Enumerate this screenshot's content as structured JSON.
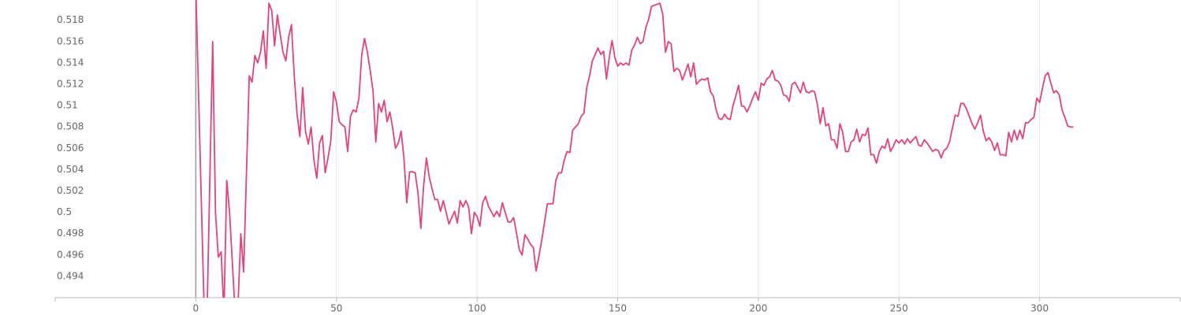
{
  "chart_data": {
    "type": "line",
    "xlim": [
      -50,
      350
    ],
    "ylim": [
      0.492,
      0.5199
    ],
    "xticks": [
      0,
      50,
      100,
      150,
      200,
      250,
      300
    ],
    "yticks": [
      0.494,
      0.496,
      0.498,
      0.5,
      0.502,
      0.504,
      0.506,
      0.508,
      0.51,
      0.512,
      0.514,
      0.516,
      0.518
    ],
    "grid": true,
    "series": [
      {
        "color": "#e8407a",
        "x": [
          0,
          3,
          4,
          6,
          7,
          8,
          9,
          10,
          11,
          12,
          14,
          15,
          16,
          17,
          19,
          20,
          21,
          22,
          23,
          24,
          25,
          26,
          27,
          28,
          29,
          30,
          31,
          32,
          33,
          34,
          35,
          36,
          37,
          38,
          39,
          40,
          41,
          42,
          43,
          44,
          45,
          46,
          47,
          48,
          49,
          50,
          51,
          52,
          53,
          54,
          55,
          56,
          57,
          58,
          59,
          60,
          61,
          62,
          63,
          64,
          65,
          66,
          67,
          68,
          69,
          70,
          71,
          72,
          73,
          74,
          75,
          76,
          77,
          78,
          79,
          80,
          81,
          82,
          83,
          84,
          85,
          86,
          87,
          88,
          89,
          90,
          91,
          92,
          93,
          94,
          95,
          96,
          97,
          98,
          99,
          100,
          101,
          102,
          103,
          104,
          105,
          106,
          107,
          108,
          109,
          110,
          111,
          112,
          113,
          114,
          115,
          116,
          117,
          118,
          119,
          120,
          121,
          122,
          123,
          124,
          125,
          126,
          127,
          128,
          129,
          130,
          131,
          132,
          133,
          134,
          135,
          136,
          137,
          138,
          139,
          140,
          141,
          142,
          143,
          144,
          145,
          146,
          147,
          148,
          149,
          150,
          151,
          152,
          153,
          154,
          155,
          156,
          157,
          158,
          159,
          160,
          161,
          162,
          163,
          164,
          165,
          166,
          167,
          168,
          169,
          170,
          171,
          172,
          173,
          174,
          175,
          176,
          177,
          178,
          179,
          180,
          181,
          182,
          183,
          184,
          185,
          186,
          187,
          188,
          189,
          190,
          191,
          192,
          193,
          194,
          195,
          196,
          197,
          198,
          199,
          200,
          201,
          202,
          203,
          204,
          205,
          206,
          207,
          208,
          209,
          210,
          211,
          212,
          213,
          214,
          215,
          216,
          217,
          218,
          219,
          220,
          221,
          222,
          223,
          224,
          225,
          226,
          227,
          228,
          229,
          230,
          231,
          232,
          233,
          234,
          235,
          236,
          237,
          238,
          239,
          240,
          241,
          242,
          243,
          244,
          245,
          246,
          247,
          248,
          249,
          250,
          251,
          252,
          253,
          254,
          255,
          256,
          257,
          258,
          259,
          260,
          261,
          262,
          263,
          264,
          265,
          266,
          267,
          268,
          269,
          270,
          271,
          272,
          273,
          274,
          275,
          276,
          277,
          278,
          279,
          280,
          281,
          282,
          283,
          284,
          285,
          286,
          287,
          288,
          289,
          290,
          291,
          292,
          293,
          294,
          295,
          296,
          297,
          298,
          299,
          300,
          301,
          302,
          303,
          304,
          305,
          306,
          307,
          308,
          309,
          310,
          311,
          312
        ],
        "values": [
          0.521,
          0.4905,
          0.4905,
          0.516,
          0.5,
          0.4958,
          0.4963,
          0.4905,
          0.503,
          0.5,
          0.4905,
          0.4913,
          0.498,
          0.4944,
          0.5128,
          0.5122,
          0.5147,
          0.514,
          0.515,
          0.517,
          0.5135,
          0.5196,
          0.5189,
          0.5156,
          0.5185,
          0.5167,
          0.515,
          0.5142,
          0.5164,
          0.5176,
          0.5128,
          0.5092,
          0.5071,
          0.5117,
          0.5076,
          0.5064,
          0.508,
          0.5049,
          0.5032,
          0.5065,
          0.5072,
          0.5037,
          0.5051,
          0.5067,
          0.5113,
          0.5103,
          0.5085,
          0.5082,
          0.508,
          0.5057,
          0.509,
          0.5096,
          0.5094,
          0.5107,
          0.5148,
          0.5163,
          0.515,
          0.5133,
          0.5114,
          0.5066,
          0.5102,
          0.5094,
          0.5105,
          0.5085,
          0.5094,
          0.5079,
          0.506,
          0.5065,
          0.5076,
          0.5051,
          0.5009,
          0.5038,
          0.5038,
          0.5037,
          0.5018,
          0.4985,
          0.5025,
          0.5051,
          0.5033,
          0.5022,
          0.5012,
          0.5012,
          0.5001,
          0.5011,
          0.5,
          0.4989,
          0.4995,
          0.5001,
          0.499,
          0.5011,
          0.5005,
          0.5011,
          0.5005,
          0.498,
          0.5,
          0.4996,
          0.4987,
          0.5009,
          0.5015,
          0.5006,
          0.5001,
          0.4996,
          0.5001,
          0.4996,
          0.5009,
          0.5,
          0.4991,
          0.4991,
          0.4995,
          0.4981,
          0.4965,
          0.496,
          0.4979,
          0.4975,
          0.497,
          0.4967,
          0.4945,
          0.4959,
          0.4974,
          0.4991,
          0.5008,
          0.5008,
          0.5008,
          0.503,
          0.5037,
          0.5037,
          0.5049,
          0.5057,
          0.5056,
          0.5077,
          0.508,
          0.5083,
          0.509,
          0.5093,
          0.5117,
          0.5128,
          0.5142,
          0.5148,
          0.5154,
          0.5148,
          0.5151,
          0.5125,
          0.5145,
          0.5161,
          0.5145,
          0.5137,
          0.514,
          0.5138,
          0.514,
          0.5138,
          0.5152,
          0.5157,
          0.5164,
          0.5158,
          0.516,
          0.5173,
          0.5181,
          0.5193,
          0.5194,
          0.5195,
          0.5196,
          0.5186,
          0.515,
          0.516,
          0.5158,
          0.5132,
          0.5135,
          0.5133,
          0.5124,
          0.5131,
          0.5139,
          0.5127,
          0.514,
          0.512,
          0.5123,
          0.5125,
          0.5124,
          0.5126,
          0.5113,
          0.5109,
          0.5096,
          0.5088,
          0.5087,
          0.5092,
          0.5088,
          0.5087,
          0.51,
          0.5109,
          0.5119,
          0.51,
          0.5099,
          0.5094,
          0.51,
          0.5107,
          0.5113,
          0.5105,
          0.5121,
          0.5119,
          0.5125,
          0.5127,
          0.5133,
          0.5124,
          0.5123,
          0.5119,
          0.511,
          0.5109,
          0.5104,
          0.512,
          0.5122,
          0.5117,
          0.5112,
          0.5122,
          0.5113,
          0.5112,
          0.5114,
          0.5113,
          0.5101,
          0.5083,
          0.5098,
          0.5081,
          0.5083,
          0.5068,
          0.5068,
          0.506,
          0.5083,
          0.5075,
          0.5057,
          0.5057,
          0.5066,
          0.5068,
          0.5078,
          0.5066,
          0.5073,
          0.5072,
          0.5079,
          0.5054,
          0.5054,
          0.5046,
          0.5057,
          0.5062,
          0.506,
          0.5069,
          0.5057,
          0.5062,
          0.5068,
          0.5065,
          0.5068,
          0.5064,
          0.5069,
          0.5065,
          0.5068,
          0.5071,
          0.5063,
          0.5062,
          0.5068,
          0.5065,
          0.5061,
          0.5057,
          0.5059,
          0.5058,
          0.5051,
          0.5058,
          0.506,
          0.5066,
          0.5079,
          0.5091,
          0.509,
          0.5102,
          0.5102,
          0.5097,
          0.509,
          0.5083,
          0.5078,
          0.5084,
          0.5091,
          0.5076,
          0.5067,
          0.507,
          0.5066,
          0.5058,
          0.5065,
          0.5054,
          0.5054,
          0.5053,
          0.5075,
          0.5066,
          0.5077,
          0.5068,
          0.5077,
          0.5069,
          0.5084,
          0.5084,
          0.5087,
          0.5089,
          0.5107,
          0.5103,
          0.5116,
          0.5128,
          0.5131,
          0.5121,
          0.5112,
          0.5114,
          0.511,
          0.5096,
          0.5089,
          0.5081,
          0.508,
          0.508
        ]
      }
    ]
  }
}
